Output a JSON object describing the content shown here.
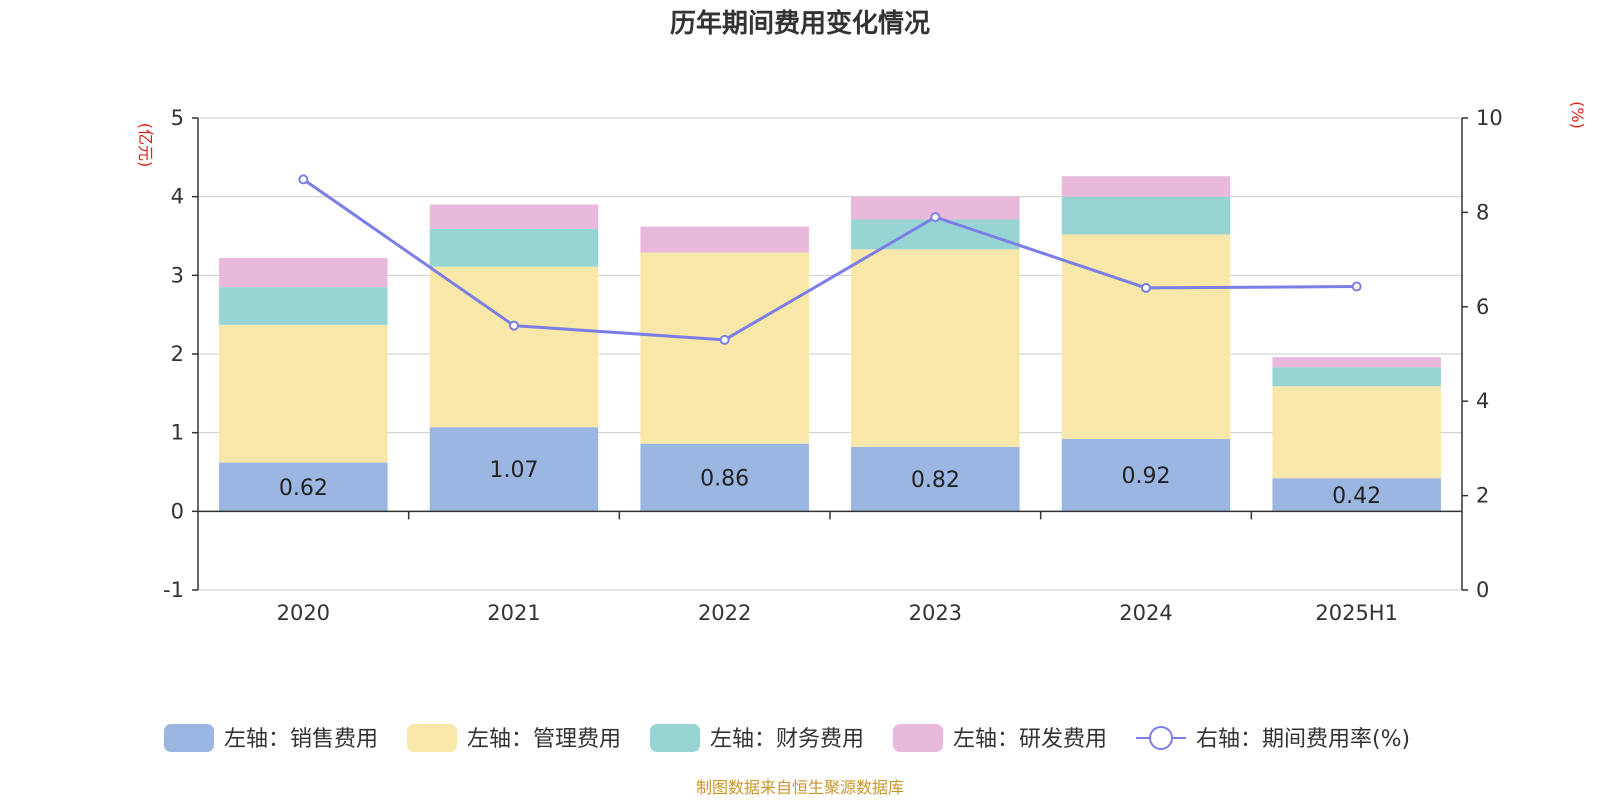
{
  "chart_data": {
    "type": "bar",
    "title": "历年期间费用变化情况",
    "categories": [
      "2020",
      "2021",
      "2022",
      "2023",
      "2024",
      "2025H1"
    ],
    "stacked": true,
    "series": [
      {
        "name": "左轴：销售费用",
        "axis": "left",
        "color": "#9bb6e0",
        "values": [
          0.62,
          1.07,
          0.86,
          0.82,
          0.92,
          0.42
        ],
        "labels": [
          "0.62",
          "1.07",
          "0.86",
          "0.82",
          "0.92",
          "0.42"
        ]
      },
      {
        "name": "左轴：管理费用",
        "axis": "left",
        "color": "#f7e7a8",
        "values": [
          1.75,
          2.04,
          2.43,
          2.51,
          2.6,
          1.17
        ]
      },
      {
        "name": "左轴：财务费用",
        "axis": "left",
        "color": "#97d4d4",
        "values": [
          0.48,
          0.48,
          0.0,
          0.38,
          0.48,
          0.24
        ]
      },
      {
        "name": "左轴：研发费用",
        "axis": "left",
        "color": "#e8b9da",
        "values": [
          0.37,
          0.31,
          0.33,
          0.29,
          0.26,
          0.13
        ]
      },
      {
        "name": "右轴：期间费用率(%)",
        "axis": "right",
        "type": "line",
        "color": "#7a7ee6",
        "values": [
          8.7,
          5.6,
          5.3,
          7.9,
          6.4,
          6.43
        ]
      }
    ],
    "left_axis": {
      "unit": "(亿元)",
      "min": -1,
      "max": 5,
      "ticks": [
        "-1",
        "0",
        "1",
        "2",
        "3",
        "4",
        "5"
      ]
    },
    "right_axis": {
      "unit": "(%)",
      "min": 0,
      "max": 10,
      "ticks": [
        "0",
        "2",
        "4",
        "6",
        "8",
        "10"
      ]
    },
    "grid": true,
    "legend_position": "bottom",
    "source": "制图数据来自恒生聚源数据库"
  }
}
